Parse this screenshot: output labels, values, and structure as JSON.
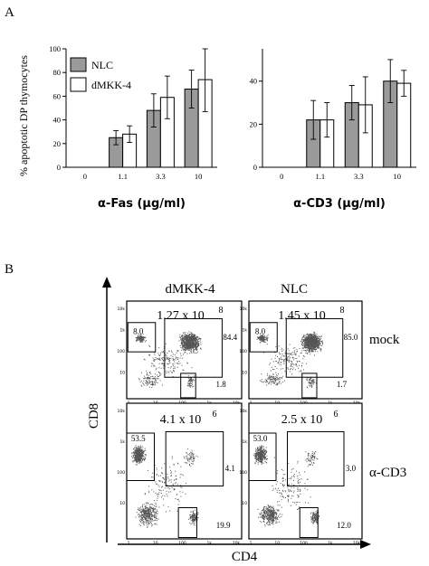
{
  "panel_a": {
    "letter": "A",
    "ylabel": "% apoptotic DP thymocytes",
    "legend": [
      {
        "label": "NLC",
        "color": "#9a9a9a"
      },
      {
        "label": "dMKK-4",
        "color": "#ffffff"
      }
    ]
  },
  "panel_b": {
    "letter": "B",
    "col_titles": [
      "dMKK-4",
      "NLC"
    ],
    "row_labels": [
      "mock",
      "α-CD3"
    ],
    "y_axis": "CD8",
    "x_axis": "CD4",
    "tick_labels": [
      "1",
      "10",
      "100",
      "1k",
      "10k"
    ],
    "plots": [
      {
        "count": "1.27 x 10",
        "exp": "8",
        "sp8": "8.0",
        "dp": "84.4",
        "sp4": "1.8"
      },
      {
        "count": "1.45 x 10",
        "exp": "8",
        "sp8": "8.0",
        "dp": "85.0",
        "sp4": "1.7"
      },
      {
        "count": "4.1 x 10",
        "exp": "6",
        "sp8": "53.5",
        "dp": "4.1",
        "sp4": "19.9"
      },
      {
        "count": "2.5 x 10",
        "exp": "6",
        "sp8": "53.0",
        "dp": "3.0",
        "sp4": "12.0"
      }
    ]
  },
  "chart_data": [
    {
      "type": "bar",
      "categories": [
        "0",
        "1.1",
        "3.3",
        "10"
      ],
      "xlabel": "α-Fas   (µg/ml)",
      "ylabel": "% apoptotic DP thymocytes",
      "ylim": [
        0,
        100
      ],
      "yticks": [
        "0",
        "20",
        "40",
        "60",
        "80",
        "100"
      ],
      "series": [
        {
          "name": "NLC",
          "values": [
            0,
            25,
            48,
            66
          ],
          "errors": [
            0,
            6,
            14,
            16
          ]
        },
        {
          "name": "dMKK-4",
          "values": [
            0,
            28,
            59,
            74
          ],
          "errors": [
            0,
            7,
            18,
            27
          ]
        }
      ]
    },
    {
      "type": "bar",
      "categories": [
        "0",
        "1.1",
        "3.3",
        "10"
      ],
      "xlabel": "α-CD3   (µg/ml)",
      "ylim": [
        0,
        55
      ],
      "yticks": [
        "0",
        "20",
        "40"
      ],
      "series": [
        {
          "name": "NLC",
          "values": [
            0,
            22,
            30,
            40
          ],
          "errors": [
            0,
            9,
            8,
            10
          ]
        },
        {
          "name": "dMKK-4",
          "values": [
            0,
            22,
            29,
            39
          ],
          "errors": [
            0,
            8,
            13,
            6
          ]
        }
      ]
    }
  ]
}
